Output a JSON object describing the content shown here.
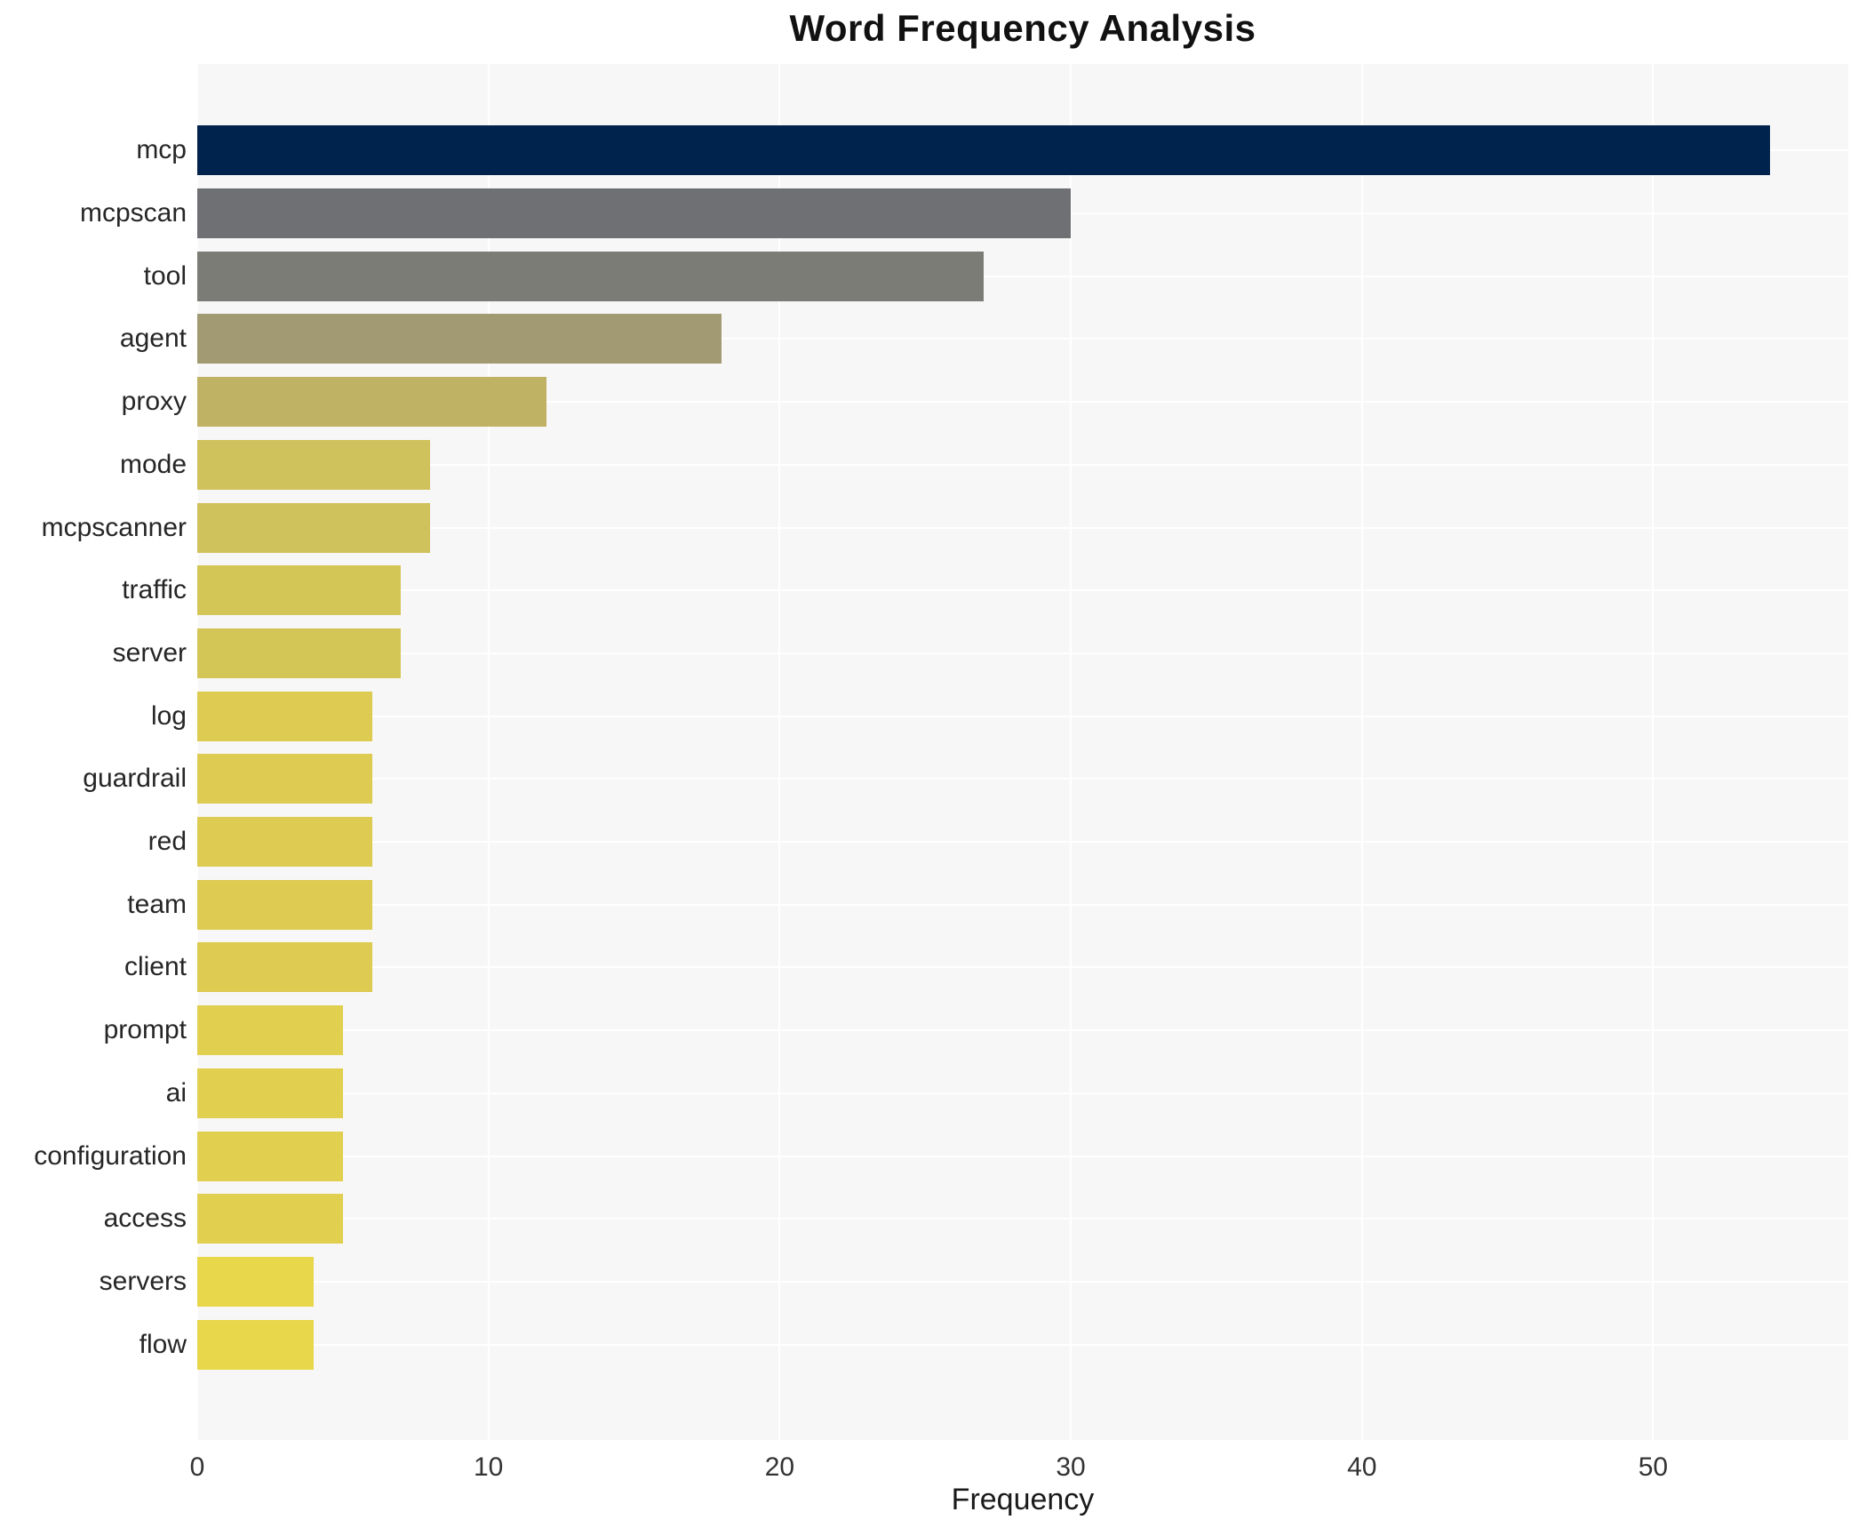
{
  "chart_data": {
    "type": "bar",
    "orientation": "horizontal",
    "title": "Word Frequency Analysis",
    "xlabel": "Frequency",
    "ylabel": "",
    "categories": [
      "mcp",
      "mcpscan",
      "tool",
      "agent",
      "proxy",
      "mode",
      "mcpscanner",
      "traffic",
      "server",
      "log",
      "guardrail",
      "red",
      "team",
      "client",
      "prompt",
      "ai",
      "configuration",
      "access",
      "servers",
      "flow"
    ],
    "values": [
      54,
      30,
      27,
      18,
      12,
      8,
      8,
      7,
      7,
      6,
      6,
      6,
      6,
      6,
      5,
      5,
      5,
      5,
      4,
      4
    ],
    "bar_colors": [
      "#00234e",
      "#6f7073",
      "#7b7c76",
      "#a29a72",
      "#c0b264",
      "#cfc15b",
      "#cfc15b",
      "#d4c656",
      "#d4c656",
      "#ddcb52",
      "#ddcb52",
      "#ddcb52",
      "#ddcb52",
      "#ddcb52",
      "#e1cf4f",
      "#e1cf4f",
      "#e1cf4f",
      "#e1cf4f",
      "#e8d74a",
      "#e8d74a"
    ],
    "x_ticks": [
      0,
      10,
      20,
      30,
      40,
      50
    ],
    "xlim": [
      0,
      56.7
    ],
    "grid": true,
    "legend": false,
    "plot_background": "#f7f7f7",
    "grid_color": "#ffffff"
  }
}
